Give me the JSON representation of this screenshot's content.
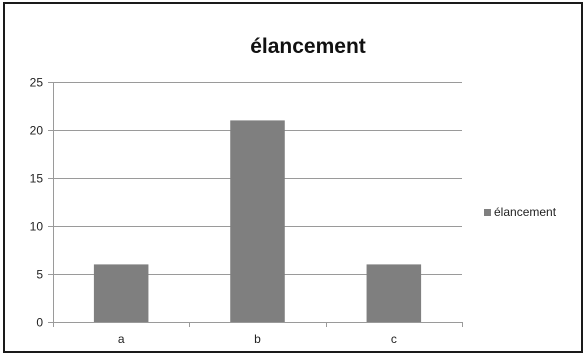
{
  "chart_data": {
    "type": "bar",
    "title": "élancement",
    "xlabel": "",
    "ylabel": "",
    "categories": [
      "a",
      "b",
      "c"
    ],
    "series": [
      {
        "name": "élancement",
        "values": [
          6,
          21,
          6
        ],
        "color": "#7f7f7f"
      }
    ],
    "ylim": [
      0,
      25
    ],
    "yticks": [
      0,
      5,
      10,
      15,
      20,
      25
    ],
    "grid": true,
    "legend_position": "right",
    "colors": {
      "bar": "#7f7f7f",
      "gridline": "#9a9a9a",
      "axis": "#9a9a9a",
      "frame": "#1a1a1a"
    }
  }
}
